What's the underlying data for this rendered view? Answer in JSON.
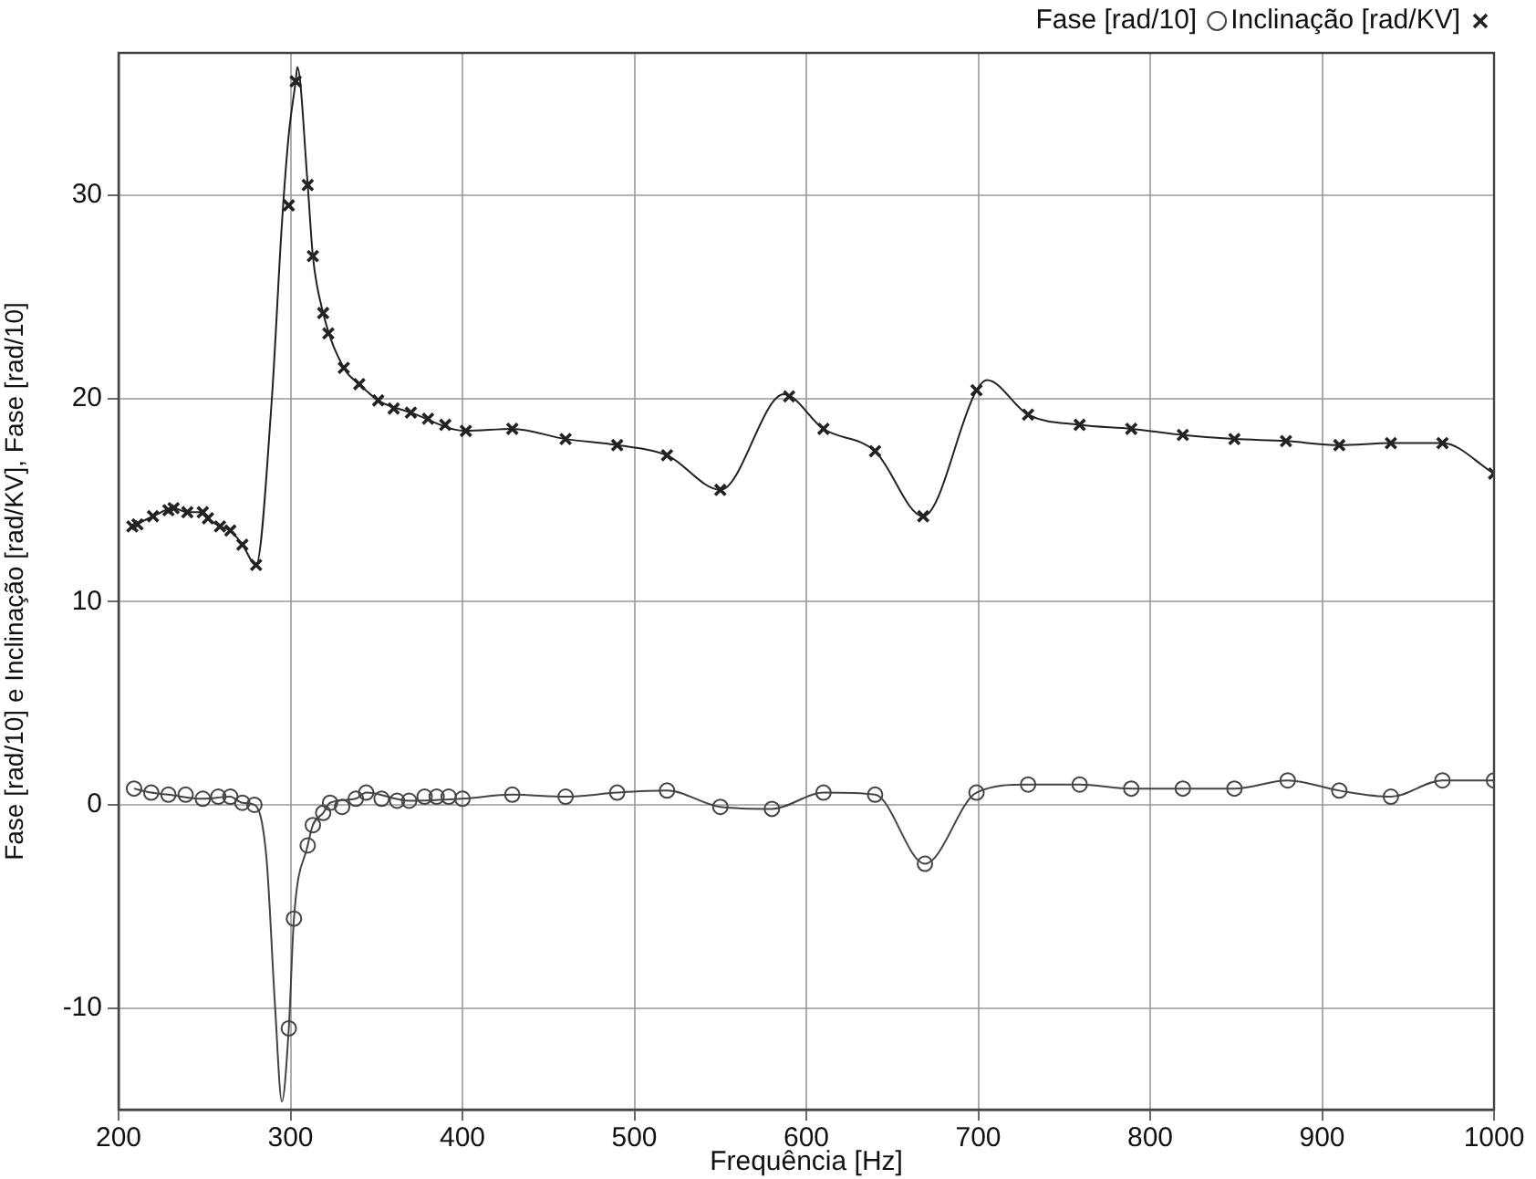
{
  "chart_data": {
    "type": "line",
    "xlabel": "Frequência [Hz]",
    "ylabel": "Fase [rad/10] e Inclinação [rad/KV], Fase [rad/10]",
    "xlim": [
      200,
      1000
    ],
    "xticks": [
      200,
      300,
      400,
      500,
      600,
      700,
      800,
      900,
      1000
    ],
    "ylim": [
      -15,
      37
    ],
    "yticks": [
      -10,
      0,
      10,
      20,
      30
    ],
    "grid": true,
    "legend": "top right",
    "series": [
      {
        "name": "Inclinação [rad/KV]",
        "type": "scatter",
        "marker": "cross",
        "color": "#222222",
        "x": [
          208,
          211,
          220,
          229,
          232,
          240,
          249,
          252,
          259,
          265,
          272,
          280,
          299,
          303,
          310,
          313,
          319,
          322,
          331,
          340,
          351,
          360,
          370,
          380,
          390,
          402,
          429,
          460,
          490,
          519,
          550,
          590,
          610,
          640,
          668,
          699,
          729,
          759,
          789,
          819,
          849,
          879,
          910,
          940,
          970,
          1000
        ],
        "values": [
          13.7,
          13.8,
          14.2,
          14.5,
          14.6,
          14.4,
          14.4,
          14.1,
          13.7,
          13.5,
          12.8,
          11.8,
          29.5,
          35.6,
          30.5,
          27.0,
          24.2,
          23.2,
          21.5,
          20.7,
          19.9,
          19.5,
          19.3,
          19.0,
          18.7,
          18.4,
          18.5,
          18.0,
          17.7,
          17.2,
          15.5,
          20.1,
          18.5,
          17.4,
          14.2,
          20.4,
          19.2,
          18.7,
          18.5,
          18.2,
          18.0,
          17.9,
          17.7,
          17.8,
          17.8,
          16.3
        ]
      },
      {
        "name": "Fase [rad/10]",
        "type": "scatter",
        "marker": "circle",
        "color": "#444444",
        "x": [
          209,
          219,
          229,
          239,
          249,
          258,
          265,
          272,
          279,
          299,
          302,
          310,
          313,
          319,
          323,
          330,
          338,
          344,
          353,
          362,
          369,
          378,
          385,
          392,
          400,
          429,
          460,
          490,
          519,
          550,
          580,
          610,
          640,
          669,
          699,
          729,
          759,
          789,
          819,
          849,
          880,
          910,
          940,
          970,
          1000
        ],
        "values": [
          0.8,
          0.6,
          0.5,
          0.5,
          0.3,
          0.4,
          0.4,
          0.1,
          0,
          -11.0,
          -5.6,
          -2.0,
          -1.0,
          -0.4,
          0.1,
          -0.1,
          0.3,
          0.6,
          0.3,
          0.2,
          0.2,
          0.4,
          0.4,
          0.4,
          0.3,
          0.5,
          0.4,
          0.6,
          0.7,
          -0.1,
          -0.2,
          0.6,
          0.5,
          -2.9,
          0.6,
          1.0,
          1.0,
          0.8,
          0.8,
          0.8,
          1.2,
          0.7,
          0.4,
          1.2,
          1.2
        ]
      },
      {
        "type": "line",
        "marker": "none",
        "color": "#222222",
        "x": [
          208,
          220,
          232,
          240,
          249,
          252,
          259,
          265,
          272,
          280,
          289,
          295,
          299,
          303,
          304,
          310,
          313,
          319,
          331,
          340,
          351,
          370,
          402,
          429,
          460,
          490,
          519,
          550,
          587,
          610,
          640,
          668,
          699,
          705,
          729,
          759,
          789,
          819,
          849,
          879,
          910,
          940,
          970,
          1000
        ],
        "values": [
          13.7,
          14.2,
          14.6,
          14.4,
          14.4,
          14.1,
          13.7,
          13.5,
          12.8,
          11.8,
          19.8,
          28.6,
          33.0,
          35.6,
          36.3,
          30.5,
          27.0,
          24.2,
          21.5,
          20.7,
          19.9,
          19.3,
          18.4,
          18.5,
          18.0,
          17.7,
          17.2,
          15.5,
          20.2,
          18.5,
          17.4,
          14.2,
          20.4,
          20.9,
          19.2,
          18.7,
          18.5,
          18.2,
          18.0,
          17.9,
          17.7,
          17.8,
          17.8,
          16.3
        ]
      },
      {
        "type": "line",
        "marker": "none",
        "color": "#444444",
        "x": [
          209,
          219,
          229,
          249,
          265,
          272,
          279,
          286,
          291,
          295,
          299,
          302,
          310,
          313,
          319,
          323,
          338,
          344,
          369,
          400,
          429,
          460,
          490,
          519,
          550,
          580,
          610,
          640,
          669,
          699,
          729,
          759,
          789,
          849,
          880,
          910,
          940,
          970,
          1000
        ],
        "values": [
          0.8,
          0.6,
          0.5,
          0.3,
          0.4,
          0.1,
          0,
          -2.6,
          -9.9,
          -14.6,
          -11.0,
          -5.6,
          -2.0,
          -1.0,
          -0.4,
          0.1,
          0.3,
          0.6,
          0.2,
          0.3,
          0.5,
          0.4,
          0.6,
          0.7,
          -0.1,
          -0.2,
          0.6,
          0.5,
          -2.9,
          0.6,
          1.0,
          1.0,
          0.8,
          0.8,
          1.2,
          0.7,
          0.4,
          1.2,
          1.2
        ]
      }
    ]
  }
}
